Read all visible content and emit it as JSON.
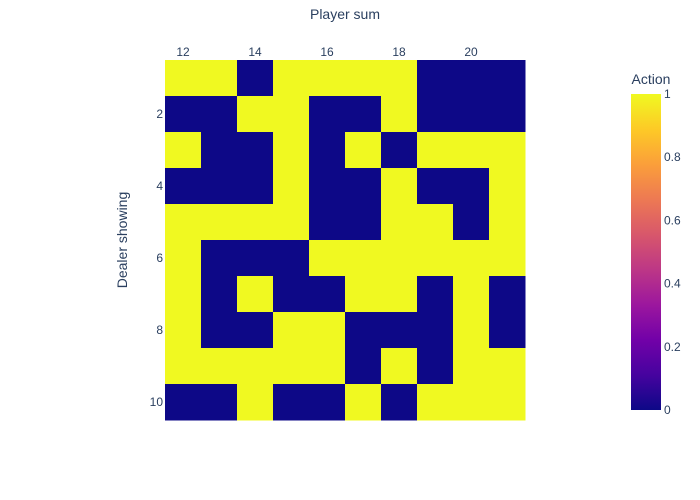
{
  "chart_data": {
    "type": "heatmap",
    "x_title": "Player sum",
    "y_title": "Dealer showing",
    "colorbar_title": "Action",
    "x": [
      12,
      13,
      14,
      15,
      16,
      17,
      18,
      19,
      20,
      21
    ],
    "y": [
      1,
      2,
      3,
      4,
      5,
      6,
      7,
      8,
      9,
      10
    ],
    "x_ticks": [
      12,
      14,
      16,
      18,
      20
    ],
    "y_ticks": [
      2,
      4,
      6,
      8,
      10
    ],
    "colorbar_ticks": [
      0,
      0.2,
      0.4,
      0.6,
      0.8,
      1
    ],
    "zmin": 0,
    "zmax": 1,
    "z": [
      [
        1,
        1,
        0,
        1,
        1,
        1,
        1,
        0,
        0,
        0
      ],
      [
        0,
        0,
        1,
        1,
        0,
        0,
        1,
        0,
        0,
        0
      ],
      [
        1,
        0,
        0,
        1,
        0,
        1,
        0,
        1,
        1,
        1
      ],
      [
        0,
        0,
        0,
        1,
        0,
        0,
        1,
        0,
        0,
        1
      ],
      [
        1,
        1,
        1,
        1,
        0,
        0,
        1,
        1,
        0,
        1
      ],
      [
        1,
        0,
        0,
        0,
        1,
        1,
        1,
        1,
        1,
        1
      ],
      [
        1,
        0,
        1,
        0,
        0,
        1,
        1,
        0,
        1,
        0
      ],
      [
        1,
        0,
        0,
        1,
        1,
        0,
        0,
        0,
        1,
        0
      ],
      [
        1,
        1,
        1,
        1,
        1,
        0,
        1,
        0,
        1,
        1
      ],
      [
        0,
        0,
        1,
        0,
        0,
        1,
        0,
        1,
        1,
        1
      ]
    ],
    "colorscale": [
      "#0d0887",
      "#46039f",
      "#7201a8",
      "#9c179e",
      "#bd3786",
      "#d8576b",
      "#ed7953",
      "#fb9f3a",
      "#fdca26",
      "#f0f921"
    ],
    "x_axis_side": "top",
    "y_axis_reversed": true,
    "grid": false,
    "colorbar_placement": "right"
  }
}
